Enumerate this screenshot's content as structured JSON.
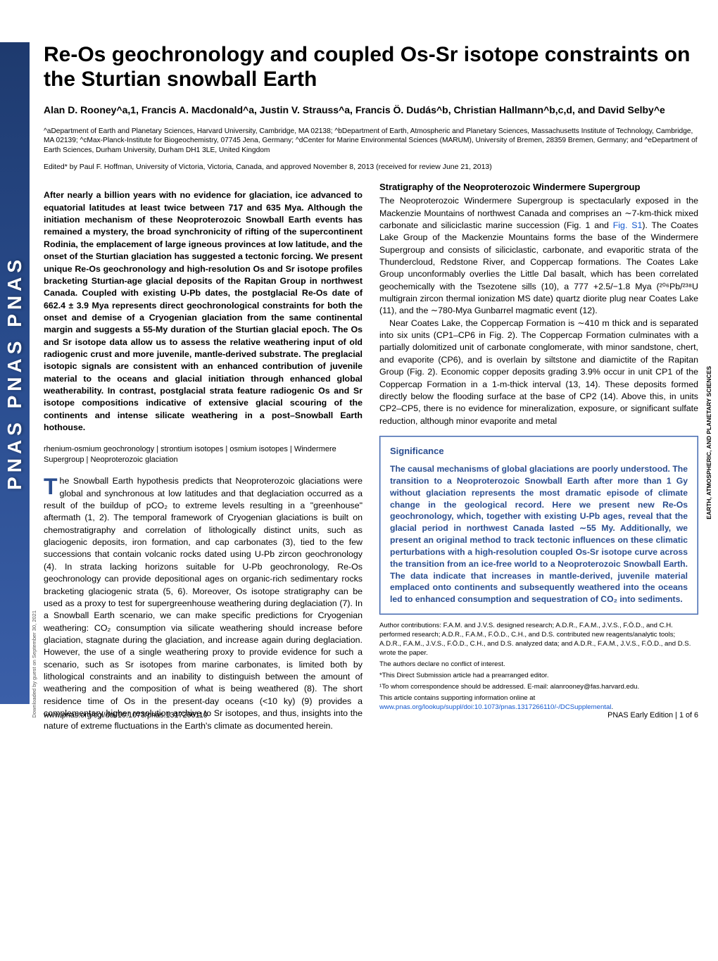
{
  "brand": "PNAS  PNAS  PNAS",
  "title": "Re-Os geochronology and coupled Os-Sr isotope constraints on the Sturtian snowball Earth",
  "authors_html": "Alan D. Rooney^a,1, Francis A. Macdonald^a, Justin V. Strauss^a, Francis Ö. Dudás^b, Christian Hallmann^b,c,d, and David Selby^e",
  "affiliations": "^aDepartment of Earth and Planetary Sciences, Harvard University, Cambridge, MA 02138; ^bDepartment of Earth, Atmospheric and Planetary Sciences, Massachusetts Institute of Technology, Cambridge, MA 02139; ^cMax-Planck-Institute for Biogeochemistry, 07745 Jena, Germany; ^dCenter for Marine Environmental Sciences (MARUM), University of Bremen, 28359 Bremen, Germany; and ^eDepartment of Earth Sciences, Durham University, Durham DH1 3LE, United Kingdom",
  "edited": "Edited* by Paul F. Hoffman, University of Victoria, Victoria, Canada, and approved November 8, 2013 (received for review June 21, 2013)",
  "abstract": "After nearly a billion years with no evidence for glaciation, ice advanced to equatorial latitudes at least twice between 717 and 635 Mya. Although the initiation mechanism of these Neoproterozoic Snowball Earth events has remained a mystery, the broad synchronicity of rifting of the supercontinent Rodinia, the emplacement of large igneous provinces at low latitude, and the onset of the Sturtian glaciation has suggested a tectonic forcing. We present unique Re-Os geochronology and high-resolution Os and Sr isotope profiles bracketing Sturtian-age glacial deposits of the Rapitan Group in northwest Canada. Coupled with existing U-Pb dates, the postglacial Re-Os date of 662.4 ± 3.9 Mya represents direct geochronological constraints for both the onset and demise of a Cryogenian glaciation from the same continental margin and suggests a 55-My duration of the Sturtian glacial epoch. The Os and Sr isotope data allow us to assess the relative weathering input of old radiogenic crust and more juvenile, mantle-derived substrate. The preglacial isotopic signals are consistent with an enhanced contribution of juvenile material to the oceans and glacial initiation through enhanced global weatherability. In contrast, postglacial strata feature radiogenic Os and Sr isotope compositions indicative of extensive glacial scouring of the continents and intense silicate weathering in a post–Snowball Earth hothouse.",
  "keywords": "rhenium-osmium geochronology | strontium isotopes | osmium isotopes | Windermere Supergroup | Neoproterozoic glaciation",
  "intro_first_letter": "T",
  "intro_first": "he Snowball Earth hypothesis predicts that Neoproterozoic glaciations were global and synchronous at low latitudes and that deglaciation occurred as a result of the buildup of pCO₂ to extreme levels resulting in a \"greenhouse\" aftermath (1, 2). The temporal framework of Cryogenian glaciations is built on chemostratigraphy and correlation of lithologically distinct units, such as glaciogenic deposits, iron formation, and cap carbonates (3), tied to the few successions that contain volcanic rocks dated using U-Pb zircon geochronology (4). In strata lacking horizons suitable for U-Pb geochronology, Re-Os geochronology can provide depositional ages on organic-rich sedimentary rocks bracketing glaciogenic strata (5, 6). Moreover, Os isotope stratigraphy can be used as a proxy to test for supergreenhouse weathering during deglaciation (7). In a Snowball Earth scenario, we can make specific predictions for Cryogenian weathering: CO₂ consumption via silicate weathering should increase before glaciation, stagnate during the glaciation, and increase again during deglaciation. However, the use of a single weathering proxy to provide evidence for such a scenario, such as Sr isotopes from marine carbonates, is limited both by lithological constraints and an inability to distinguish between the amount of weathering and the composition of what is being weathered (8). The short residence time of Os in the present-day oceans (<10 ky) (9) provides a complementary higher resolution archive to Sr isotopes, and thus, insights into the nature of extreme fluctuations in the Earth's climate as documented herein.",
  "section_heading": "Stratigraphy of the Neoproterozoic Windermere Supergroup",
  "right_col_p1": "The Neoproterozoic Windermere Supergroup is spectacularly exposed in the Mackenzie Mountains of northwest Canada and comprises an ∼7-km-thick mixed carbonate and siliciclastic marine succession (Fig. 1 and ",
  "right_col_link_fig": "Fig. S1",
  "right_col_p1b": "). The Coates Lake Group of the Mackenzie Mountains forms the base of the Windermere Supergroup and consists of siliciclastic, carbonate, and evaporitic strata of the Thundercloud, Redstone River, and Coppercap formations. The Coates Lake Group unconformably overlies the Little Dal basalt, which has been correlated geochemically with the Tsezotene sills (10), a 777 +2.5/−1.8 Mya (²⁰⁶Pb/²³⁸U multigrain zircon thermal ionization MS date) quartz diorite plug near Coates Lake (11), and the ∼780-Mya Gunbarrel magmatic event (12).",
  "right_col_p2": "Near Coates Lake, the Coppercap Formation is ∼410 m thick and is separated into six units (CP1–CP6 in Fig. 2). The Coppercap Formation culminates with a partially dolomitized unit of carbonate conglomerate, with minor sandstone, chert, and evaporite (CP6), and is overlain by siltstone and diamictite of the Rapitan Group (Fig. 2). Economic copper deposits grading 3.9% occur in unit CP1 of the Coppercap Formation in a 1-m-thick interval (13, 14). These deposits formed directly below the flooding surface at the base of CP2 (14). Above this, in units CP2–CP5, there is no evidence for mineralization, exposure, or significant sulfate reduction, although minor evaporite and metal",
  "significance_title": "Significance",
  "significance": "The causal mechanisms of global glaciations are poorly understood. The transition to a Neoproterozoic Snowball Earth after more than 1 Gy without glaciation represents the most dramatic episode of climate change in the geological record. Here we present new Re-Os geochronology, which, together with existing U-Pb ages, reveal that the glacial period in northwest Canada lasted ∼55 My. Additionally, we present an original method to track tectonic influences on these climatic perturbations with a high-resolution coupled Os-Sr isotope curve across the transition from an ice-free world to a Neoproterozoic Snowball Earth. The data indicate that increases in mantle-derived, juvenile material emplaced onto continents and subsequently weathered into the oceans led to enhanced consumption and sequestration of CO₂ into sediments.",
  "author_contrib": "Author contributions: F.A.M. and J.V.S. designed research; A.D.R., F.A.M., J.V.S., F.Ö.D., and C.H. performed research; A.D.R., F.A.M., F.Ö.D., C.H., and D.S. contributed new reagents/analytic tools; A.D.R., F.A.M., J.V.S., F.Ö.D., C.H., and D.S. analyzed data; and A.D.R., F.A.M., J.V.S., F.Ö.D., and D.S. wrote the paper.",
  "conflict": "The authors declare no conflict of interest.",
  "direct_sub": "*This Direct Submission article had a prearranged editor.",
  "corresp": "¹To whom correspondence should be addressed. E-mail: alanrooney@fas.harvard.edu.",
  "supp_info_prefix": "This article contains supporting information online at ",
  "supp_info_link": "www.pnas.org/lookup/suppl/doi:10.1073/pnas.1317266110/-/DCSupplemental",
  "supp_info_suffix": ".",
  "sidebar_label": "EARTH, ATMOSPHERIC, AND PLANETARY SCIENCES",
  "download_note": "Downloaded by guest on September 30, 2021",
  "footer_left": "www.pnas.org/cgi/doi/10.1073/pnas.1317266110",
  "footer_right": "PNAS Early Edition | 1 of 6"
}
